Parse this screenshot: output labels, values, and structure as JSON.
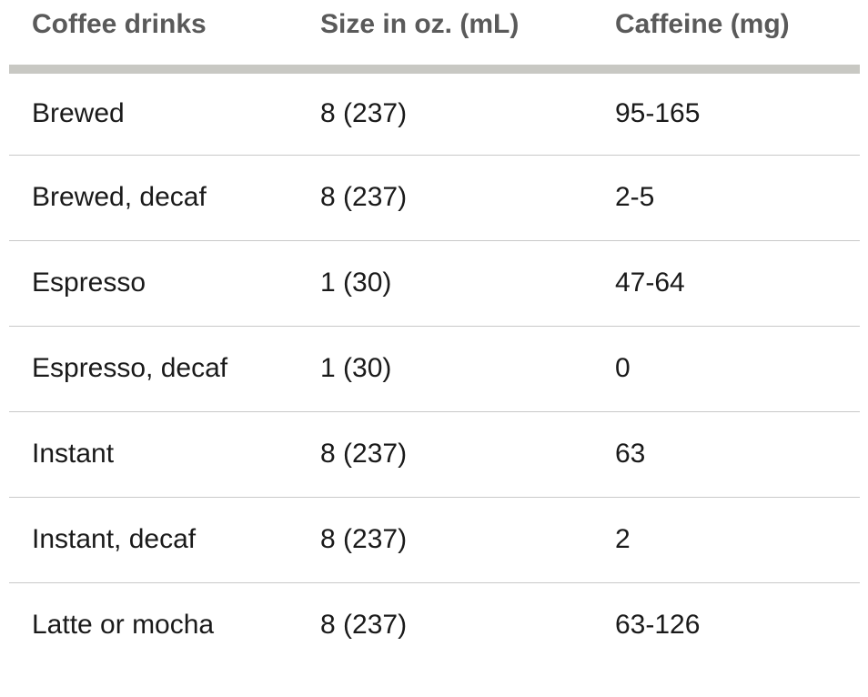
{
  "table": {
    "headers": [
      "Coffee drinks",
      "Size in oz. (mL)",
      "Caffeine (mg)"
    ],
    "rows": [
      [
        "Brewed",
        "8 (237)",
        "95-165"
      ],
      [
        "Brewed, decaf",
        "8 (237)",
        "2-5"
      ],
      [
        "Espresso",
        "1 (30)",
        "47-64"
      ],
      [
        "Espresso, decaf",
        "1 (30)",
        "0"
      ],
      [
        "Instant",
        "8 (237)",
        "63"
      ],
      [
        "Instant, decaf",
        "8 (237)",
        "2"
      ],
      [
        "Latte or mocha",
        "8 (237)",
        "63-126"
      ]
    ]
  },
  "colors": {
    "header_text": "#5a5a5a",
    "header_rule": "#c8c8c3",
    "row_divider": "#c9c9c9",
    "body_text": "#1a1a1a"
  }
}
